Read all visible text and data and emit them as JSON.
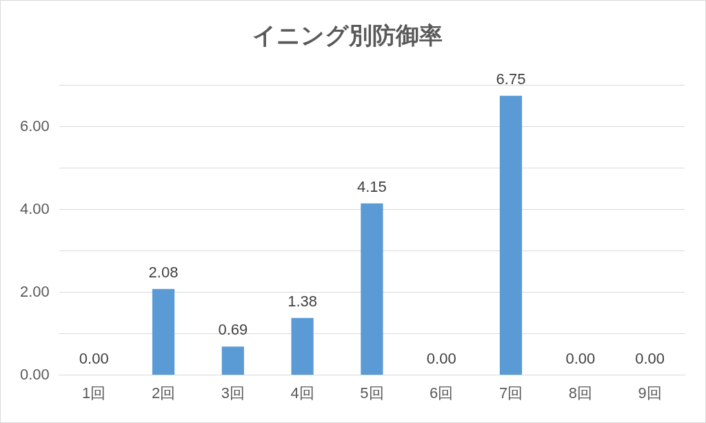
{
  "chart_data": {
    "type": "bar",
    "title": "イニング別防御率",
    "categories": [
      "1回",
      "2回",
      "3回",
      "4回",
      "5回",
      "6回",
      "7回",
      "8回",
      "9回"
    ],
    "values": [
      0,
      2.08,
      0.69,
      1.38,
      4.15,
      0,
      6.75,
      0,
      0
    ],
    "value_labels": [
      "0.00",
      "2.08",
      "0.69",
      "1.38",
      "4.15",
      "0.00",
      "6.75",
      "0.00",
      "0.00"
    ],
    "color": "#5b9bd5",
    "ylim": [
      0,
      7
    ],
    "yticks": [
      {
        "value": 0,
        "label": "0.00"
      },
      {
        "value": 1,
        "label": null
      },
      {
        "value": 2,
        "label": "2.00"
      },
      {
        "value": 3,
        "label": null
      },
      {
        "value": 4,
        "label": "4.00"
      },
      {
        "value": 5,
        "label": null
      },
      {
        "value": 6,
        "label": "6.00"
      },
      {
        "value": 7,
        "label": null
      }
    ],
    "grid": true
  }
}
